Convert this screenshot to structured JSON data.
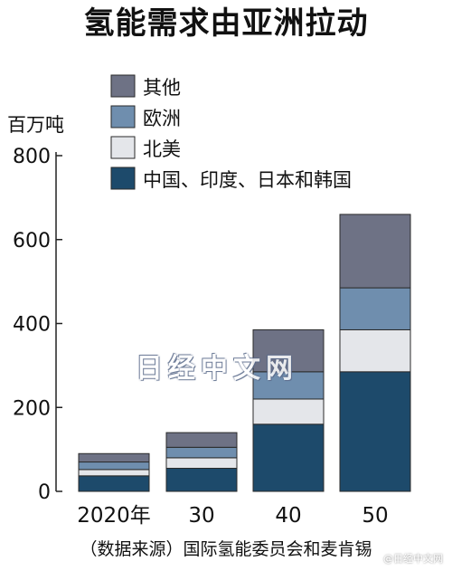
{
  "chart_data": {
    "type": "bar",
    "stacked": true,
    "title": "氢能需求由亚洲拉动",
    "ylabel": "百万吨",
    "ylim": [
      0,
      800
    ],
    "yticks": [
      0,
      200,
      400,
      600,
      800
    ],
    "categories": [
      "2020年",
      "30",
      "40",
      "50"
    ],
    "series": [
      {
        "name": "中国、印度、日本和韩国",
        "color": "#1d4a6b",
        "values": [
          37,
          55,
          160,
          285
        ]
      },
      {
        "name": "北美",
        "color": "#e4e6ea",
        "values": [
          15,
          25,
          60,
          100
        ]
      },
      {
        "name": "欧洲",
        "color": "#6f8eae",
        "values": [
          18,
          25,
          65,
          100
        ]
      },
      {
        "name": "其他",
        "color": "#6e7285",
        "values": [
          20,
          35,
          100,
          175
        ]
      }
    ],
    "legend_position": "top",
    "grid": false,
    "source": "（数据来源）国际氢能委员会和麦肯锡",
    "watermark": "日经中文网",
    "credit": "@日经中文网"
  }
}
